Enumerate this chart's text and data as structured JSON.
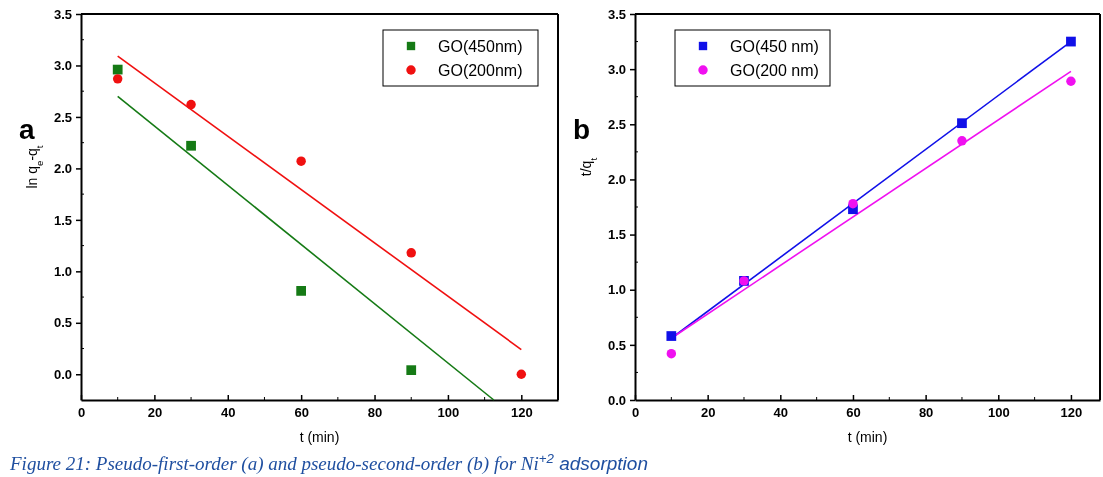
{
  "chart_data": [
    {
      "type": "scatter",
      "xlabel": "t (min)",
      "ylabel": "ln q$_{e}$-q$_{t}$",
      "xlim": [
        0,
        130
      ],
      "ylim": [
        -0.25,
        3.5
      ],
      "xticks": [
        0,
        20,
        40,
        60,
        80,
        100,
        120
      ],
      "yticks": [
        {
          "value": 0,
          "label": "0.0"
        },
        0.5,
        {
          "value": 1,
          "label": "1.0"
        },
        1.5,
        {
          "value": 2,
          "label": "2.0"
        },
        2.5,
        {
          "value": 3,
          "label": "3.0"
        },
        3.5
      ],
      "x": [
        10,
        30,
        60,
        90,
        120
      ],
      "legend": "top right",
      "grid": false,
      "annotations": [
        "a",
        "Figure 21: Pseudo-first-order (a) and pseudo-second-order (b) for Ni$^{+2}$ adsorption"
      ],
      "series": [
        {
          "name": "GO(450nm)",
          "color": "#157a15",
          "marker": "square",
          "values": [
            2.96,
            2.22,
            0.81,
            0.04,
            null
          ]
        },
        {
          "name": "GO(200nm)",
          "color": "#f01010",
          "marker": "circle",
          "values": [
            2.87,
            2.62,
            2.07,
            1.18,
            0
          ]
        },
        {
          "type": "line",
          "color": "#157a15",
          "marker": "none",
          "x": [
            10,
            112.5
          ],
          "values": [
            2.7,
            -0.25
          ]
        },
        {
          "type": "line",
          "color": "#f01010",
          "marker": "none",
          "x": [
            10,
            120
          ],
          "values": [
            3.09,
            0.24
          ]
        }
      ]
    },
    {
      "type": "scatter",
      "xlabel": "t (min)",
      "ylabel": "t/q$_{t}$",
      "xlim": [
        0,
        128
      ],
      "ylim": [
        0,
        3.5
      ],
      "xticks": [
        0,
        20,
        40,
        60,
        80,
        100,
        120
      ],
      "yticks": [
        {
          "value": 0,
          "label": "0.0"
        },
        0.5,
        {
          "value": 1,
          "label": "1.0"
        },
        1.5,
        {
          "value": 2,
          "label": "2.0"
        },
        2.5,
        {
          "value": 3,
          "label": "3.0"
        },
        3.5
      ],
      "x": [
        10,
        30,
        60,
        90,
        120
      ],
      "legend": "top left",
      "grid": false,
      "annotations": [
        "b"
      ],
      "series": [
        {
          "type": "line",
          "color": "#1010e8",
          "marker": "none",
          "x": [
            10,
            120
          ],
          "values": [
            0.56,
            3.25
          ]
        },
        {
          "type": "line",
          "color": "#f010f0",
          "marker": "none",
          "x": [
            10,
            120
          ],
          "values": [
            0.56,
            2.98
          ]
        },
        {
          "name": "GO(450 nm)",
          "color": "#1010e8",
          "marker": "square",
          "values": [
            0.58,
            1.08,
            1.73,
            2.51,
            3.25
          ]
        },
        {
          "name": "GO(200 nm)",
          "color": "#f010f0",
          "marker": "circle",
          "values": [
            0.42,
            1.08,
            1.78,
            2.35,
            2.89
          ]
        }
      ]
    }
  ]
}
